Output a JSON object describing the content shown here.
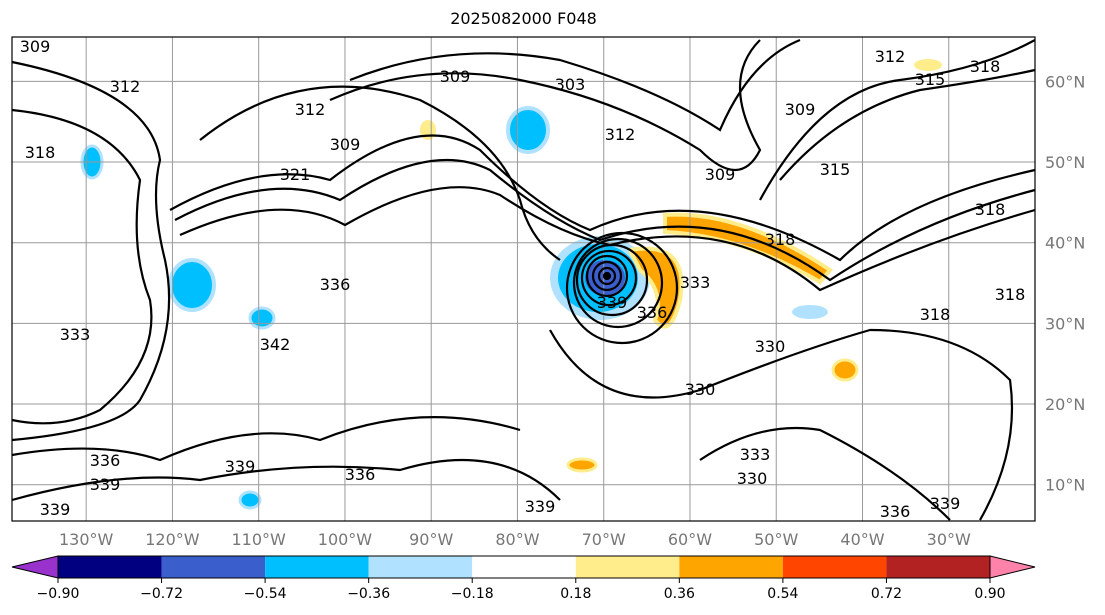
{
  "title": "2025082000 F048",
  "map": {
    "lon_ticks": [
      -130,
      -120,
      -110,
      -100,
      -90,
      -80,
      -70,
      -60,
      -50,
      -40,
      -30
    ],
    "lon_labels": [
      "130°W",
      "120°W",
      "110°W",
      "100°W",
      "90°W",
      "80°W",
      "70°W",
      "60°W",
      "50°W",
      "40°W",
      "30°W"
    ],
    "lat_ticks": [
      60,
      50,
      40,
      30,
      20,
      10
    ],
    "lat_labels": [
      "60°N",
      "50°N",
      "40°N",
      "30°N",
      "20°N",
      "10°N"
    ],
    "lon_range": [
      -138.6,
      -20
    ],
    "lat_range": [
      5.5,
      65.5
    ],
    "contour_labels": [
      "309",
      "312",
      "303",
      "309",
      "312",
      "309",
      "312",
      "315",
      "318",
      "318",
      "312",
      "309",
      "321",
      "309",
      "315",
      "318",
      "318",
      "339",
      "336",
      "333",
      "330",
      "330",
      "333",
      "330",
      "336",
      "339",
      "339",
      "336",
      "339",
      "339",
      "336",
      "339",
      "318",
      "318",
      "342",
      "336",
      "333"
    ]
  },
  "colorbar": {
    "levels": [
      "−0.90",
      "−0.72",
      "−0.54",
      "−0.36",
      "−0.18",
      "0.18",
      "0.36",
      "0.54",
      "0.72",
      "0.90"
    ],
    "colors": [
      "#9932cc",
      "#000080",
      "#3a5fcd",
      "#00bfff",
      "#b0e2ff",
      "#ffffff",
      "#ffec8b",
      "#ffa500",
      "#ff4500",
      "#b22222",
      "#ff82ab"
    ]
  }
}
